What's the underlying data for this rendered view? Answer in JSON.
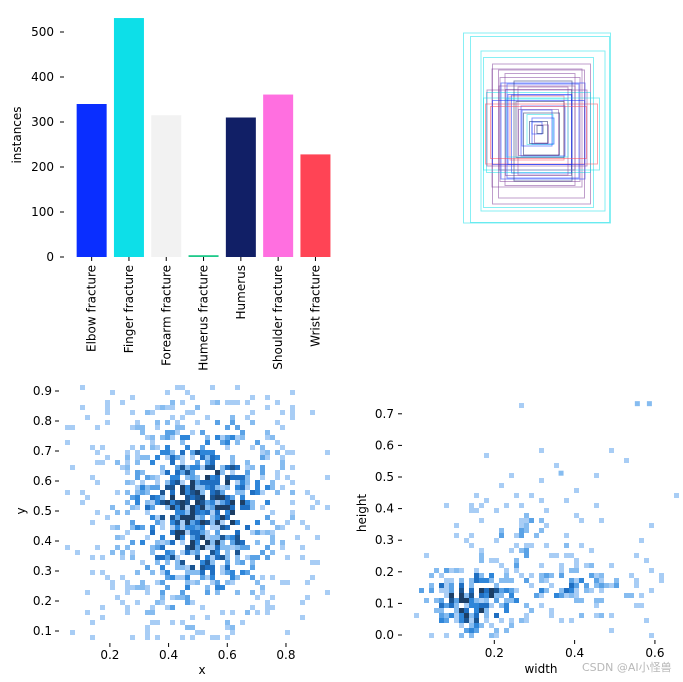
{
  "chart_data": [
    {
      "type": "bar",
      "categories": [
        "Elbow fracture",
        "Finger fracture",
        "Forearm fracture",
        "Humerus fracture",
        "Humerus",
        "Shoulder fracture",
        "Wrist fracture"
      ],
      "values": [
        340,
        531,
        315,
        4,
        310,
        361,
        228
      ],
      "colors": [
        "#0a2eff",
        "#0ddfe8",
        "#f2f2f2",
        "#1fc98a",
        "#111f66",
        "#ff6fe0",
        "#ff4455"
      ],
      "ylabel": "instances",
      "ylim": [
        0,
        540
      ],
      "yticks": [
        0,
        100,
        200,
        300,
        400,
        500
      ]
    },
    {
      "type": "scatter",
      "description_shown": "overlaid bounding boxes",
      "colors": [
        "#0ddfe8",
        "#7d3c98",
        "#0a2eff",
        "#ff4455",
        "#111f66"
      ]
    },
    {
      "type": "heatmap",
      "xlabel": "x",
      "ylabel": "y",
      "xlim": [
        0.03,
        0.95
      ],
      "ylim": [
        0.08,
        0.92
      ],
      "xticks": [
        0.2,
        0.4,
        0.6,
        0.8
      ],
      "yticks": [
        0.1,
        0.2,
        0.3,
        0.4,
        0.5,
        0.6,
        0.7,
        0.8,
        0.9
      ],
      "center": [
        0.5,
        0.5
      ],
      "color": "#1f77d4"
    },
    {
      "type": "heatmap",
      "xlabel": "width",
      "ylabel": "height",
      "xlim": [
        0.0,
        0.65
      ],
      "ylim": [
        0.0,
        0.75
      ],
      "xticks": [
        0.2,
        0.4,
        0.6
      ],
      "yticks": [
        0.0,
        0.1,
        0.2,
        0.3,
        0.4,
        0.5,
        0.6,
        0.7
      ],
      "color": "#1f77d4"
    }
  ],
  "watermark": "CSDN @AI小怪兽"
}
